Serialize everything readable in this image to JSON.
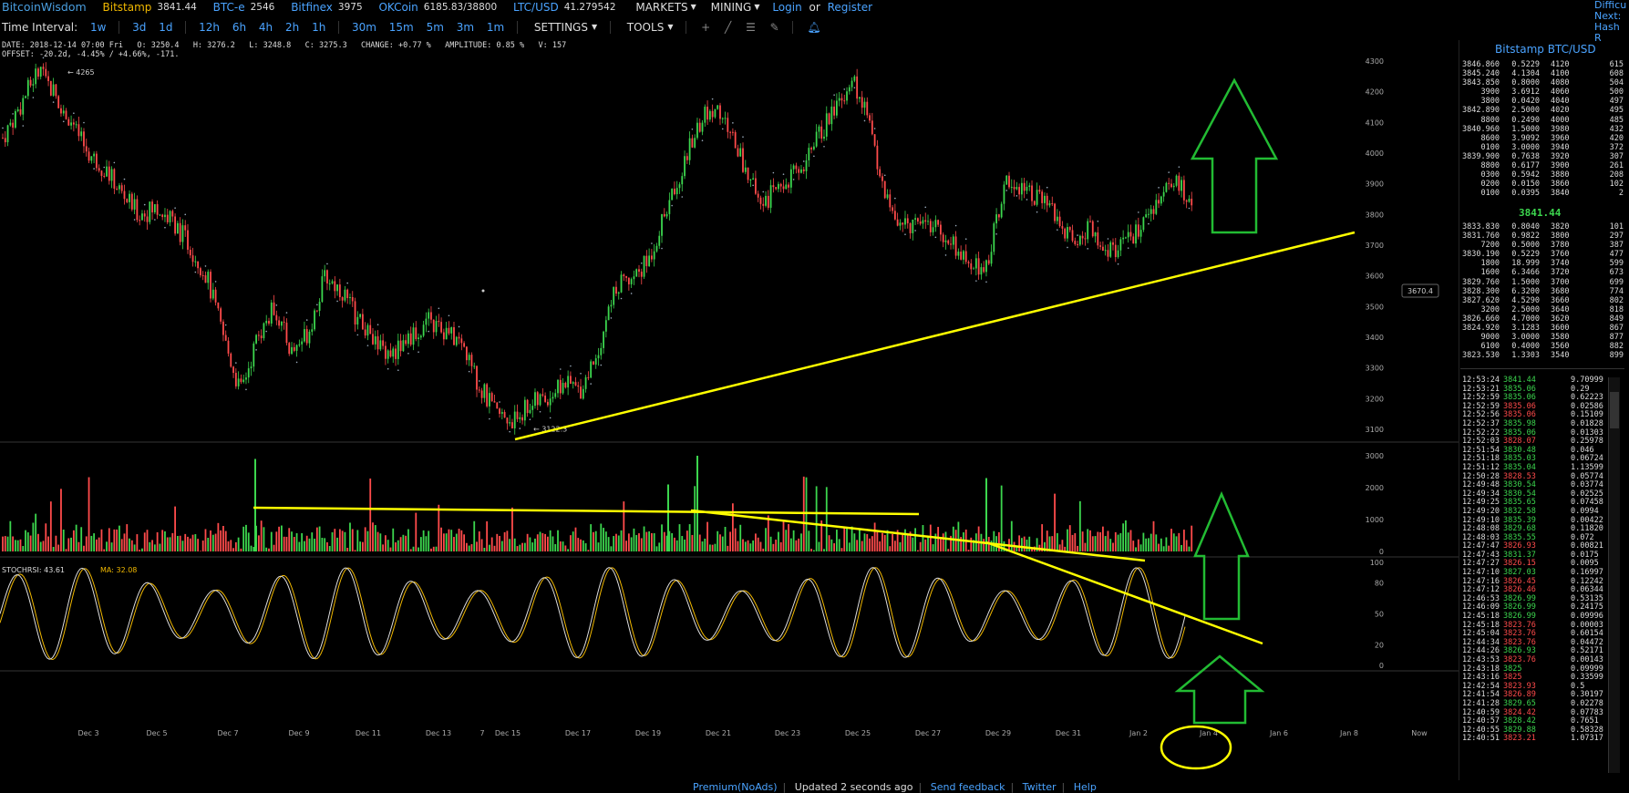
{
  "header": {
    "logo": "BitcoinWisdom",
    "markets": [
      {
        "name": "Bitstamp",
        "price": "3841.44"
      },
      {
        "name": "BTC-e",
        "price": "2546"
      },
      {
        "name": "Bitfinex",
        "price": "3975"
      },
      {
        "name": "OKCoin",
        "price": "6185.83/38800"
      },
      {
        "name": "LTC/USD",
        "price": "41.279542"
      }
    ],
    "menu_markets": "MARKETS",
    "menu_mining": "MINING",
    "login": "Login",
    "or": "or",
    "register": "Register",
    "right_cut": [
      "Difficu",
      "Next:",
      "Hash R"
    ]
  },
  "toolbar": {
    "label": "Time Interval:",
    "intervals": [
      "1w",
      "3d",
      "1d",
      "12h",
      "6h",
      "4h",
      "2h",
      "1h",
      "30m",
      "15m",
      "5m",
      "3m",
      "1m"
    ],
    "settings": "SETTINGS",
    "tools": "TOOLS"
  },
  "info": {
    "line1": "DATE: 2018-12-14 07:00 Fri   O: 3250.4   H: 3276.2   L: 3248.8   C: 3275.3   CHANGE: +0.77 %   AMPLITUDE: 0.85 %   V: 157",
    "line2": "OFFSET: -20.2d, -4.45% / +4.66%, -171."
  },
  "chart_data": {
    "type": "candlestick",
    "price_axis": [
      "4300",
      "4200",
      "4100",
      "4000",
      "3900",
      "3800",
      "3700",
      "3600",
      "3500",
      "3400",
      "3300",
      "3200",
      "3100"
    ],
    "volume_axis": [
      "3000",
      "2000",
      "1000",
      "0"
    ],
    "rsi_axis": [
      "100",
      "80",
      "50",
      "20",
      "0"
    ],
    "x_axis": [
      "Dec 3",
      "Dec 5",
      "Dec 7",
      "Dec 9",
      "Dec 11",
      "Dec 13",
      "7",
      "Dec 15",
      "Dec 17",
      "Dec 19",
      "Dec 21",
      "Dec 23",
      "Dec 25",
      "Dec 27",
      "Dec 29",
      "Dec 31",
      "Jan 2",
      "Jan 4",
      "Jan 6",
      "Jan 8",
      "Now"
    ],
    "high_label": "4265",
    "low_label": "3122.3",
    "cursor_price": "3670.4",
    "stochrsi_label": "STOCHRSI: 43.61",
    "ma_label": "MA: 32.08",
    "price_path": [
      4050,
      4150,
      4265,
      4200,
      4100,
      4000,
      3950,
      3870,
      3800,
      3820,
      3780,
      3700,
      3600,
      3400,
      3220,
      3400,
      3500,
      3350,
      3420,
      3600,
      3550,
      3450,
      3380,
      3350,
      3400,
      3450,
      3420,
      3380,
      3250,
      3150,
      3130,
      3180,
      3200,
      3250,
      3230,
      3350,
      3550,
      3600,
      3650,
      3800,
      3950,
      4100,
      4150,
      4050,
      3900,
      3850,
      3900,
      3950,
      4050,
      4150,
      4250,
      4100,
      3850,
      3750,
      3800,
      3750,
      3700,
      3620,
      3650,
      3900,
      3900,
      3850,
      3800,
      3700,
      3760,
      3680,
      3700,
      3760,
      3850,
      3900,
      3860
    ]
  },
  "sidebar": {
    "title": "Bitstamp BTC/USD",
    "last_price": "3841.44",
    "asks": [
      [
        "3846.860",
        "0.5229",
        "4120",
        "615"
      ],
      [
        "3845.240",
        "4.1304",
        "4100",
        "608"
      ],
      [
        "3843.850",
        "0.8000",
        "4080",
        "504"
      ],
      [
        "3900",
        "3.6912",
        "4060",
        "500"
      ],
      [
        "3800",
        "0.0420",
        "4040",
        "497"
      ],
      [
        "3842.890",
        "2.5000",
        "4020",
        "495"
      ],
      [
        "8800",
        "0.2490",
        "4000",
        "485"
      ],
      [
        "3840.960",
        "1.5000",
        "3980",
        "432"
      ],
      [
        "8600",
        "3.9092",
        "3960",
        "420"
      ],
      [
        "0100",
        "3.0000",
        "3940",
        "372"
      ],
      [
        "3839.900",
        "0.7638",
        "3920",
        "307"
      ],
      [
        "8800",
        "0.6177",
        "3900",
        "261"
      ],
      [
        "0300",
        "0.5942",
        "3880",
        "208"
      ],
      [
        "0200",
        "0.0150",
        "3860",
        "102"
      ],
      [
        "0100",
        "0.0395",
        "3840",
        "2"
      ]
    ],
    "bids": [
      [
        "3833.830",
        "0.8040",
        "3820",
        "101"
      ],
      [
        "3831.760",
        "0.9822",
        "3800",
        "297"
      ],
      [
        "7200",
        "0.5000",
        "3780",
        "387"
      ],
      [
        "3830.190",
        "0.5229",
        "3760",
        "477"
      ],
      [
        "1800",
        "18.999",
        "3740",
        "599"
      ],
      [
        "1600",
        "6.3466",
        "3720",
        "673"
      ],
      [
        "3829.760",
        "1.5000",
        "3700",
        "699"
      ],
      [
        "3828.300",
        "6.3200",
        "3680",
        "774"
      ],
      [
        "3827.620",
        "4.5290",
        "3660",
        "802"
      ],
      [
        "3200",
        "2.5000",
        "3640",
        "818"
      ],
      [
        "3826.660",
        "4.7000",
        "3620",
        "849"
      ],
      [
        "3824.920",
        "3.1283",
        "3600",
        "867"
      ],
      [
        "9000",
        "3.0000",
        "3580",
        "877"
      ],
      [
        "6100",
        "0.4000",
        "3560",
        "882"
      ],
      [
        "3823.530",
        "1.3303",
        "3540",
        "899"
      ]
    ],
    "trades": [
      [
        "12:53:24",
        "3841.44",
        "up",
        "9.70999"
      ],
      [
        "12:53:21",
        "3835.06",
        "up",
        "0.29"
      ],
      [
        "12:52:59",
        "3835.06",
        "up",
        "0.62223"
      ],
      [
        "12:52:59",
        "3835.06",
        "dn",
        "0.02586"
      ],
      [
        "12:52:56",
        "3835.06",
        "dn",
        "0.15109"
      ],
      [
        "12:52:37",
        "3835.98",
        "up",
        "0.01828"
      ],
      [
        "12:52:22",
        "3835.06",
        "up",
        "0.01303"
      ],
      [
        "12:52:03",
        "3828.07",
        "dn",
        "0.25978"
      ],
      [
        "12:51:54",
        "3830.48",
        "up",
        "0.046"
      ],
      [
        "12:51:18",
        "3835.03",
        "up",
        "0.06724"
      ],
      [
        "12:51:12",
        "3835.04",
        "up",
        "1.13599"
      ],
      [
        "12:50:28",
        "3828.53",
        "dn",
        "0.05774"
      ],
      [
        "12:49:48",
        "3830.54",
        "up",
        "0.03774"
      ],
      [
        "12:49:34",
        "3830.54",
        "up",
        "0.02525"
      ],
      [
        "12:49:25",
        "3835.65",
        "up",
        "0.07458"
      ],
      [
        "12:49:20",
        "3832.58",
        "up",
        "0.0994"
      ],
      [
        "12:49:10",
        "3835.39",
        "up",
        "0.00422"
      ],
      [
        "12:48:08",
        "3829.68",
        "up",
        "0.11820"
      ],
      [
        "12:48:03",
        "3835.55",
        "up",
        "0.072"
      ],
      [
        "12:47:47",
        "3826.93",
        "dn",
        "0.00821"
      ],
      [
        "12:47:43",
        "3831.37",
        "up",
        "0.0175"
      ],
      [
        "12:47:27",
        "3826.15",
        "dn",
        "0.0095"
      ],
      [
        "12:47:10",
        "3827.03",
        "up",
        "0.16997"
      ],
      [
        "12:47:16",
        "3826.45",
        "dn",
        "0.12242"
      ],
      [
        "12:47:12",
        "3826.46",
        "dn",
        "0.06344"
      ],
      [
        "12:46:53",
        "3826.99",
        "up",
        "0.53135"
      ],
      [
        "12:46:09",
        "3826.99",
        "up",
        "0.24175"
      ],
      [
        "12:45:18",
        "3826.99",
        "up",
        "0.09996"
      ],
      [
        "12:45:18",
        "3823.76",
        "dn",
        "0.00003"
      ],
      [
        "12:45:04",
        "3823.76",
        "dn",
        "0.60154"
      ],
      [
        "12:44:34",
        "3823.76",
        "dn",
        "0.04472"
      ],
      [
        "12:44:26",
        "3826.93",
        "up",
        "0.52171"
      ],
      [
        "12:43:53",
        "3823.76",
        "dn",
        "0.00143"
      ],
      [
        "12:43:18",
        "3825",
        "up",
        "0.09999"
      ],
      [
        "12:43:16",
        "3825",
        "dn",
        "0.33599"
      ],
      [
        "12:42:54",
        "3823.93",
        "dn",
        "0.5"
      ],
      [
        "12:41:54",
        "3826.89",
        "dn",
        "0.30197"
      ],
      [
        "12:41:28",
        "3829.65",
        "up",
        "0.02278"
      ],
      [
        "12:40:59",
        "3824.42",
        "dn",
        "0.07783"
      ],
      [
        "12:40:57",
        "3828.42",
        "up",
        "0.7651"
      ],
      [
        "12:40:55",
        "3829.88",
        "up",
        "0.58328"
      ],
      [
        "12:40:51",
        "3823.21",
        "dn",
        "1.07317"
      ]
    ]
  },
  "footer": {
    "links": [
      "Premium(NoAds)",
      "Updated 2 seconds ago",
      "Send feedback",
      "Twitter",
      "Help"
    ]
  },
  "colors": {
    "bg": "#000000",
    "up": "#3cd64e",
    "down": "#ff4b4b",
    "link": "#4aa3ff",
    "annotation_yellow": "#ffff00",
    "annotation_green": "#22bb33"
  }
}
